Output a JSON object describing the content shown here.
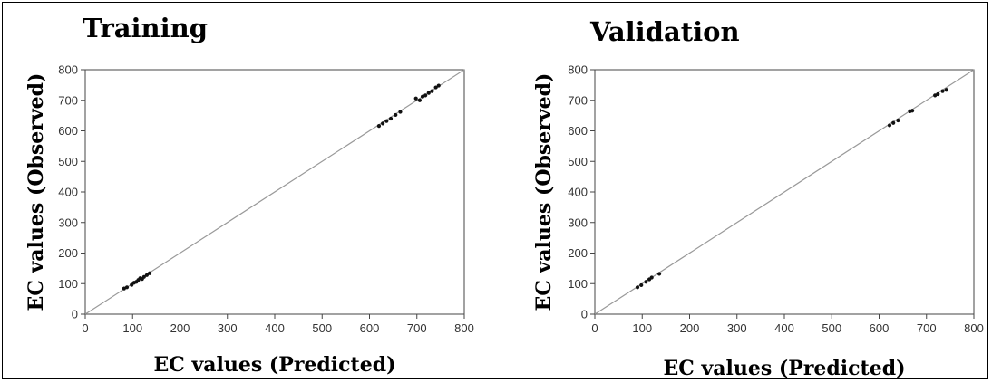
{
  "chart_data": [
    {
      "type": "scatter",
      "title": "Training",
      "xlabel": "EC values (Predicted)",
      "ylabel": "EC values (Observed)",
      "xlim": [
        0,
        800
      ],
      "ylim": [
        0,
        800
      ],
      "xticks": [
        0,
        100,
        200,
        300,
        400,
        500,
        600,
        700,
        800
      ],
      "yticks": [
        0,
        100,
        200,
        300,
        400,
        500,
        600,
        700,
        800
      ],
      "xtick_labels": [
        "0",
        "100",
        "200",
        "300",
        "400",
        "500",
        "600",
        "700",
        "800"
      ],
      "ytick_labels": [
        "0",
        "100",
        "200",
        "300",
        "400",
        "500",
        "600",
        "700",
        "800"
      ],
      "reference_line": "y = x",
      "grid": false,
      "points": [
        {
          "x": 82,
          "y": 84
        },
        {
          "x": 88,
          "y": 88
        },
        {
          "x": 98,
          "y": 96
        },
        {
          "x": 103,
          "y": 103
        },
        {
          "x": 108,
          "y": 106
        },
        {
          "x": 112,
          "y": 112
        },
        {
          "x": 116,
          "y": 118
        },
        {
          "x": 120,
          "y": 115
        },
        {
          "x": 124,
          "y": 122
        },
        {
          "x": 130,
          "y": 128
        },
        {
          "x": 136,
          "y": 134
        },
        {
          "x": 620,
          "y": 616
        },
        {
          "x": 628,
          "y": 624
        },
        {
          "x": 636,
          "y": 632
        },
        {
          "x": 645,
          "y": 640
        },
        {
          "x": 655,
          "y": 652
        },
        {
          "x": 665,
          "y": 662
        },
        {
          "x": 698,
          "y": 706
        },
        {
          "x": 706,
          "y": 700
        },
        {
          "x": 712,
          "y": 712
        },
        {
          "x": 718,
          "y": 716
        },
        {
          "x": 725,
          "y": 724
        },
        {
          "x": 732,
          "y": 730
        },
        {
          "x": 740,
          "y": 742
        },
        {
          "x": 746,
          "y": 748
        }
      ]
    },
    {
      "type": "scatter",
      "title": "Validation",
      "xlabel": "EC values (Predicted)",
      "ylabel": "EC values (Observed)",
      "xlim": [
        0,
        800
      ],
      "ylim": [
        0,
        800
      ],
      "xticks": [
        0,
        100,
        200,
        300,
        400,
        500,
        600,
        700,
        800
      ],
      "yticks": [
        0,
        100,
        200,
        300,
        400,
        500,
        600,
        700,
        800
      ],
      "xtick_labels": [
        "0",
        "100",
        "200",
        "300",
        "400",
        "500",
        "600",
        "700",
        "800"
      ],
      "ytick_labels": [
        "0",
        "100",
        "200",
        "300",
        "400",
        "500",
        "600",
        "700",
        "800"
      ],
      "reference_line": "y = x",
      "grid": false,
      "points": [
        {
          "x": 90,
          "y": 88
        },
        {
          "x": 98,
          "y": 95
        },
        {
          "x": 108,
          "y": 106
        },
        {
          "x": 115,
          "y": 114
        },
        {
          "x": 120,
          "y": 120
        },
        {
          "x": 136,
          "y": 132
        },
        {
          "x": 622,
          "y": 618
        },
        {
          "x": 630,
          "y": 626
        },
        {
          "x": 640,
          "y": 634
        },
        {
          "x": 665,
          "y": 664
        },
        {
          "x": 670,
          "y": 666
        },
        {
          "x": 718,
          "y": 716
        },
        {
          "x": 724,
          "y": 720
        },
        {
          "x": 734,
          "y": 730
        },
        {
          "x": 742,
          "y": 734
        }
      ]
    }
  ]
}
